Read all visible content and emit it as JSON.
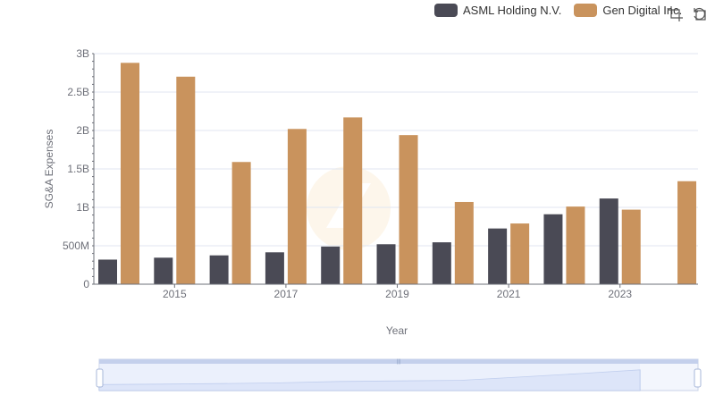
{
  "legend": [
    {
      "name": "ASML Holding N.V.",
      "color": "#4a4a55"
    },
    {
      "name": "Gen Digital Inc.",
      "color": "#c9935d"
    }
  ],
  "toolbox": {
    "zoom_icon": "data-zoom-icon",
    "restore_icon": "restore-icon"
  },
  "chart_data": {
    "type": "bar",
    "xlabel": "Year",
    "ylabel": "SG&A Expenses",
    "ylim": [
      0,
      3000000000
    ],
    "yticks": [
      {
        "value": 0,
        "label": "0"
      },
      {
        "value": 500000000,
        "label": "500M"
      },
      {
        "value": 1000000000,
        "label": "1B"
      },
      {
        "value": 1500000000,
        "label": "1.5B"
      },
      {
        "value": 2000000000,
        "label": "2B"
      },
      {
        "value": 2500000000,
        "label": "2.5B"
      },
      {
        "value": 3000000000,
        "label": "3B"
      }
    ],
    "categories": [
      "2014",
      "2015",
      "2016",
      "2017",
      "2018",
      "2019",
      "2020",
      "2021",
      "2022",
      "2023",
      "2024"
    ],
    "xtick_labels": [
      "2015",
      "2017",
      "2019",
      "2021",
      "2023"
    ],
    "series": [
      {
        "name": "ASML Holding N.V.",
        "color": "#4a4a55",
        "values": [
          320000000,
          345000000,
          375000000,
          415000000,
          490000000,
          520000000,
          545000000,
          725000000,
          910000000,
          1115000000,
          null
        ]
      },
      {
        "name": "Gen Digital Inc.",
        "color": "#c9935d",
        "values": [
          2880000000,
          2700000000,
          1590000000,
          2020000000,
          2170000000,
          1940000000,
          1070000000,
          790000000,
          1010000000,
          970000000,
          1340000000
        ]
      }
    ]
  }
}
